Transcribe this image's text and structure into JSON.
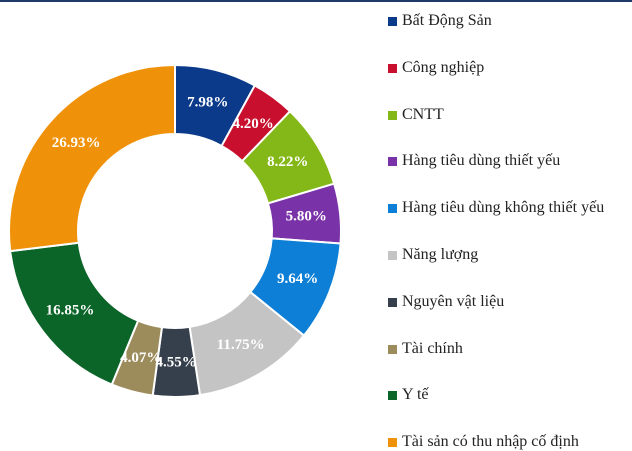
{
  "chart_data": {
    "type": "donut",
    "categories": [
      "Bất Động Sản",
      "Công nghiệp",
      "CNTT",
      "Hàng tiêu dùng thiết yếu",
      "Hàng tiêu dùng không thiết yếu",
      "Năng lượng",
      "Nguyên vật liệu",
      "Tài chính",
      "Y tế",
      "Tài sản có thu nhập cố định"
    ],
    "values": [
      7.98,
      4.2,
      8.22,
      5.8,
      9.64,
      11.75,
      4.55,
      4.07,
      16.85,
      26.93
    ],
    "value_labels": [
      "7.98%",
      "4.20%",
      "8.22%",
      "5.80%",
      "9.64%",
      "11.75%",
      "4.55%",
      "4.07%",
      "16.85%",
      "26.93%"
    ],
    "colors": [
      "#0b3a8a",
      "#c8102e",
      "#84b818",
      "#7a32a8",
      "#0e7fd6",
      "#c4c4c4",
      "#36404c",
      "#9c8c5c",
      "#0b6428",
      "#ef9209"
    ],
    "legend": "right"
  }
}
